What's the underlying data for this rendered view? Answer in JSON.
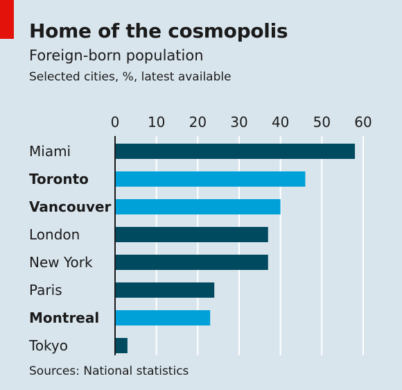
{
  "header": {
    "title": "Home of the cosmopolis",
    "subtitle": "Foreign-born population",
    "unit_note": "Selected cities, %, latest available"
  },
  "footer": {
    "source": "Sources: National statistics"
  },
  "colors": {
    "background": "#d9e5ed",
    "accent_red": "#e3120b",
    "bar_dark": "#004a60",
    "bar_highlight": "#00a0d8",
    "gridline": "#ffffff"
  },
  "chart_data": {
    "type": "bar",
    "orientation": "horizontal",
    "title": "Home of the cosmopolis",
    "subtitle": "Foreign-born population",
    "xlabel": "",
    "ylabel": "",
    "xlim": [
      0,
      60
    ],
    "xticks": [
      0,
      10,
      20,
      30,
      40,
      50,
      60
    ],
    "grid": true,
    "categories": [
      "Miami",
      "Toronto",
      "Vancouver",
      "London",
      "New York",
      "Paris",
      "Montreal",
      "Tokyo"
    ],
    "values": [
      58,
      46,
      40,
      37,
      37,
      24,
      23,
      3
    ],
    "highlighted": [
      "Toronto",
      "Vancouver",
      "Montreal"
    ]
  }
}
